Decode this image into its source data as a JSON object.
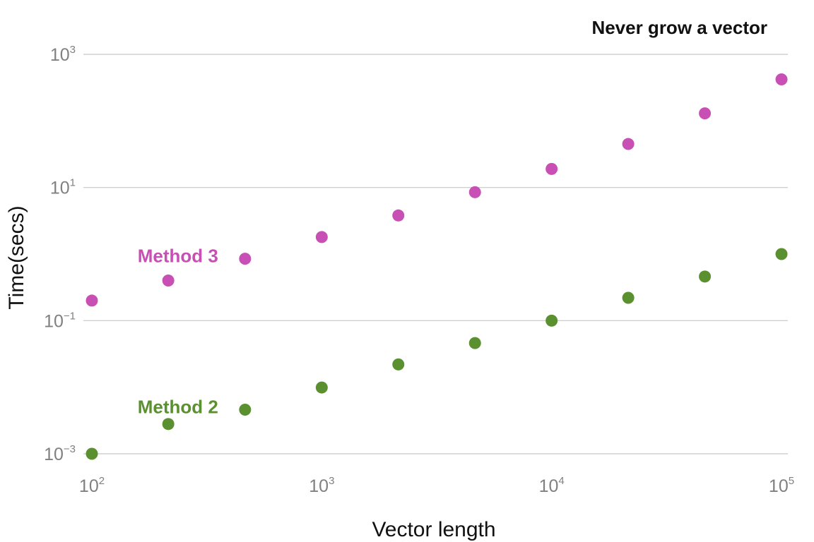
{
  "chart_data": {
    "type": "scatter",
    "title": "Never grow a vector",
    "xlabel": "Vector length",
    "ylabel": "Time(secs)",
    "x_scale": "log10",
    "y_scale": "log10",
    "xlim": [
      100,
      100000
    ],
    "ylim": [
      0.001,
      1000
    ],
    "grid": "horizontal major",
    "x_ticks": [
      {
        "base": "10",
        "exp": "2"
      },
      {
        "base": "10",
        "exp": "3"
      },
      {
        "base": "10",
        "exp": "4"
      },
      {
        "base": "10",
        "exp": "5"
      }
    ],
    "y_ticks": [
      {
        "base": "10",
        "exp": "3"
      },
      {
        "base": "10",
        "exp": "1"
      },
      {
        "base": "10",
        "exp": "−1"
      },
      {
        "base": "10",
        "exp": "−3"
      }
    ],
    "x": [
      100,
      215,
      464,
      1000,
      2154,
      4642,
      10000,
      21544,
      46416,
      100000
    ],
    "series": [
      {
        "name": "Method 3",
        "color": "#c84fb4",
        "values": [
          0.2,
          0.4,
          0.85,
          1.8,
          3.8,
          8.5,
          19,
          45,
          130,
          420
        ]
      },
      {
        "name": "Method 2",
        "color": "#5b9030",
        "values": [
          0.001,
          0.0028,
          0.0046,
          0.0099,
          0.022,
          0.046,
          0.1,
          0.22,
          0.46,
          1.0
        ]
      }
    ]
  }
}
